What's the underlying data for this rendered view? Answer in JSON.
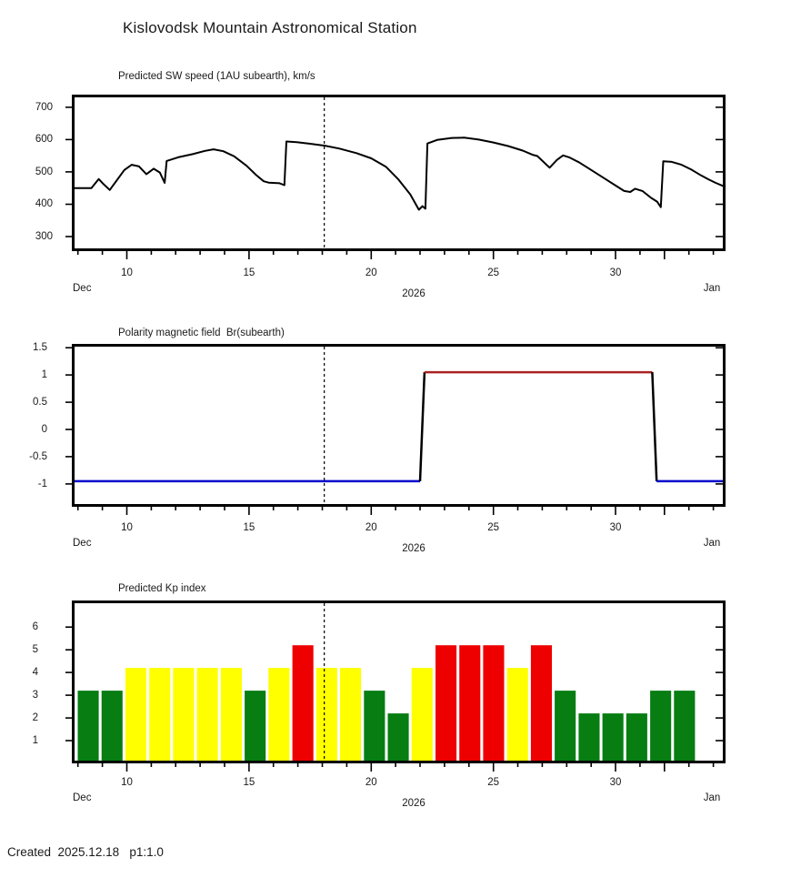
{
  "header": {
    "title": "Kislovodsk Mountain Astronomical Station"
  },
  "footer": {
    "created": "Created  2025.12.18   p1:1.0"
  },
  "colors": {
    "line_black": "#000000",
    "polarity_negative_blue": "#0000cc",
    "polarity_positive_red": "#aa2222",
    "kp_green": "#077d12",
    "kp_yellow": "#ffff00",
    "kp_red": "#ee0000",
    "frame": "#000000",
    "text": "#1a1a1a"
  },
  "chart_data": [
    {
      "type": "line",
      "title": "Predicted SW speed (1AU subearth), km/s",
      "x_axis": {
        "domain": [
          7.75,
          34.5
        ],
        "minor_ticks": [
          8,
          9,
          10,
          11,
          12,
          13,
          14,
          15,
          16,
          17,
          18,
          19,
          20,
          21,
          22,
          23,
          24,
          25,
          26,
          27,
          28,
          29,
          30,
          31,
          32,
          33,
          34
        ],
        "major_ticks": [
          10,
          15,
          20,
          25,
          30,
          32
        ],
        "labeled_ticks": [
          10,
          15,
          20,
          25,
          30
        ],
        "label_left": "Dec",
        "label_center": "2026",
        "label_right": "Jan"
      },
      "y_axis": {
        "domain": [
          255,
          739
        ],
        "ticks": [
          300,
          400,
          500,
          600,
          700
        ]
      },
      "forecast_start_day": 18.08,
      "series": [
        {
          "name": "predicted-sw-speed",
          "color": "#000000",
          "points": [
            [
              7.75,
              450
            ],
            [
              8.55,
              450
            ],
            [
              8.85,
              478
            ],
            [
              9.05,
              462
            ],
            [
              9.3,
              444
            ],
            [
              9.9,
              506
            ],
            [
              10.2,
              522
            ],
            [
              10.5,
              517
            ],
            [
              10.8,
              493
            ],
            [
              11.1,
              510
            ],
            [
              11.35,
              498
            ],
            [
              11.55,
              466
            ],
            [
              11.63,
              534
            ],
            [
              12.1,
              545
            ],
            [
              12.7,
              555
            ],
            [
              13.2,
              565
            ],
            [
              13.55,
              570
            ],
            [
              13.95,
              564
            ],
            [
              14.4,
              548
            ],
            [
              14.9,
              519
            ],
            [
              15.3,
              490
            ],
            [
              15.6,
              471
            ],
            [
              15.8,
              467
            ],
            [
              16.25,
              465
            ],
            [
              16.45,
              459
            ],
            [
              16.53,
              594
            ],
            [
              16.95,
              592
            ],
            [
              17.5,
              587
            ],
            [
              18.1,
              581
            ],
            [
              18.7,
              572
            ],
            [
              19.4,
              558
            ],
            [
              20.0,
              542
            ],
            [
              20.6,
              516
            ],
            [
              21.1,
              478
            ],
            [
              21.6,
              430
            ],
            [
              21.95,
              383
            ],
            [
              22.1,
              394
            ],
            [
              22.22,
              386
            ],
            [
              22.3,
              588
            ],
            [
              22.7,
              599
            ],
            [
              23.3,
              605
            ],
            [
              23.8,
              606
            ],
            [
              24.4,
              600
            ],
            [
              25.0,
              591
            ],
            [
              25.6,
              580
            ],
            [
              26.2,
              566
            ],
            [
              26.6,
              553
            ],
            [
              26.8,
              549
            ],
            [
              27.3,
              513
            ],
            [
              27.6,
              537
            ],
            [
              27.85,
              551
            ],
            [
              28.1,
              545
            ],
            [
              28.5,
              530
            ],
            [
              29.0,
              506
            ],
            [
              29.5,
              482
            ],
            [
              30.0,
              458
            ],
            [
              30.35,
              441
            ],
            [
              30.6,
              438
            ],
            [
              30.8,
              448
            ],
            [
              31.1,
              441
            ],
            [
              31.45,
              420
            ],
            [
              31.7,
              408
            ],
            [
              31.85,
              391
            ],
            [
              31.95,
              533
            ],
            [
              32.3,
              531
            ],
            [
              32.7,
              522
            ],
            [
              33.1,
              507
            ],
            [
              33.5,
              489
            ],
            [
              33.8,
              477
            ],
            [
              34.1,
              466
            ],
            [
              34.5,
              453
            ]
          ]
        }
      ]
    },
    {
      "type": "step-line",
      "title": "Polarity magnetic field  Br(subearth)",
      "x_axis": {
        "domain": [
          7.75,
          34.5
        ],
        "minor_ticks": [
          8,
          9,
          10,
          11,
          12,
          13,
          14,
          15,
          16,
          17,
          18,
          19,
          20,
          21,
          22,
          23,
          24,
          25,
          26,
          27,
          28,
          29,
          30,
          31,
          32,
          33,
          34
        ],
        "major_ticks": [
          10,
          15,
          20,
          25,
          30,
          32
        ],
        "labeled_ticks": [
          10,
          15,
          20,
          25,
          30
        ],
        "label_left": "Dec",
        "label_center": "2026",
        "label_right": "Jan"
      },
      "y_axis": {
        "domain": [
          -1.42,
          1.57
        ],
        "ticks": [
          1.5,
          1,
          0.5,
          0,
          -0.5,
          -1
        ]
      },
      "forecast_start_day": 18.08,
      "series": [
        {
          "name": "negative-polarity-segment",
          "color": "#0000cc",
          "points": [
            [
              7.75,
              -0.95
            ],
            [
              22.0,
              -0.95
            ]
          ]
        },
        {
          "name": "polarity-transition-up",
          "color": "#000000",
          "points": [
            [
              22.0,
              -0.95
            ],
            [
              22.18,
              1.05
            ]
          ]
        },
        {
          "name": "positive-polarity-segment",
          "color": "#aa2222",
          "points": [
            [
              22.18,
              1.05
            ],
            [
              31.5,
              1.05
            ]
          ]
        },
        {
          "name": "polarity-transition-down",
          "color": "#000000",
          "points": [
            [
              31.5,
              1.05
            ],
            [
              31.68,
              -0.95
            ]
          ]
        },
        {
          "name": "negative-polarity-segment-2",
          "color": "#0000cc",
          "points": [
            [
              31.68,
              -0.95
            ],
            [
              34.5,
              -0.95
            ]
          ]
        }
      ]
    },
    {
      "type": "bar",
      "title": "Predicted Kp index",
      "x_axis": {
        "domain": [
          7.75,
          34.5
        ],
        "minor_ticks": [
          8,
          9,
          10,
          11,
          12,
          13,
          14,
          15,
          16,
          17,
          18,
          19,
          20,
          21,
          22,
          23,
          24,
          25,
          26,
          27,
          28,
          29,
          30,
          31,
          32,
          33,
          34
        ],
        "major_ticks": [
          10,
          15,
          20,
          25,
          30,
          32
        ],
        "labeled_ticks": [
          10,
          15,
          20,
          25,
          30
        ],
        "label_left": "Dec",
        "label_center": "2026",
        "label_right": "Jan"
      },
      "y_axis": {
        "domain": [
          0,
          7.17
        ],
        "ticks": [
          1,
          2,
          3,
          4,
          5,
          6
        ]
      },
      "forecast_start_day": 18.08,
      "bar_layout": {
        "first_center_day": 8.42,
        "slot_days": 0.976,
        "bar_width_days": 0.86
      },
      "palette": {
        "green": "#077d12",
        "yellow": "#ffff00",
        "red": "#ee0000"
      },
      "bars": [
        {
          "day": 8,
          "kp": 3.2,
          "color": "green"
        },
        {
          "day": 9,
          "kp": 3.2,
          "color": "green"
        },
        {
          "day": 10,
          "kp": 4.2,
          "color": "yellow"
        },
        {
          "day": 11,
          "kp": 4.2,
          "color": "yellow"
        },
        {
          "day": 12,
          "kp": 4.2,
          "color": "yellow"
        },
        {
          "day": 13,
          "kp": 4.2,
          "color": "yellow"
        },
        {
          "day": 14,
          "kp": 4.2,
          "color": "yellow"
        },
        {
          "day": 15,
          "kp": 3.2,
          "color": "green"
        },
        {
          "day": 16,
          "kp": 4.2,
          "color": "yellow"
        },
        {
          "day": 17,
          "kp": 5.2,
          "color": "red"
        },
        {
          "day": 18,
          "kp": 4.2,
          "color": "yellow"
        },
        {
          "day": 19,
          "kp": 4.2,
          "color": "yellow"
        },
        {
          "day": 20,
          "kp": 3.2,
          "color": "green"
        },
        {
          "day": 21,
          "kp": 2.2,
          "color": "green"
        },
        {
          "day": 22,
          "kp": 4.2,
          "color": "yellow"
        },
        {
          "day": 23,
          "kp": 5.2,
          "color": "red"
        },
        {
          "day": 24,
          "kp": 5.2,
          "color": "red"
        },
        {
          "day": 25,
          "kp": 5.2,
          "color": "red"
        },
        {
          "day": 26,
          "kp": 4.2,
          "color": "yellow"
        },
        {
          "day": 27,
          "kp": 5.2,
          "color": "red"
        },
        {
          "day": 28,
          "kp": 3.2,
          "color": "green"
        },
        {
          "day": 29,
          "kp": 2.2,
          "color": "green"
        },
        {
          "day": 30,
          "kp": 2.2,
          "color": "green"
        },
        {
          "day": 31,
          "kp": 2.2,
          "color": "green"
        },
        {
          "day": 32,
          "kp": 3.2,
          "color": "green"
        },
        {
          "day": 33,
          "kp": 3.2,
          "color": "green"
        }
      ]
    }
  ]
}
